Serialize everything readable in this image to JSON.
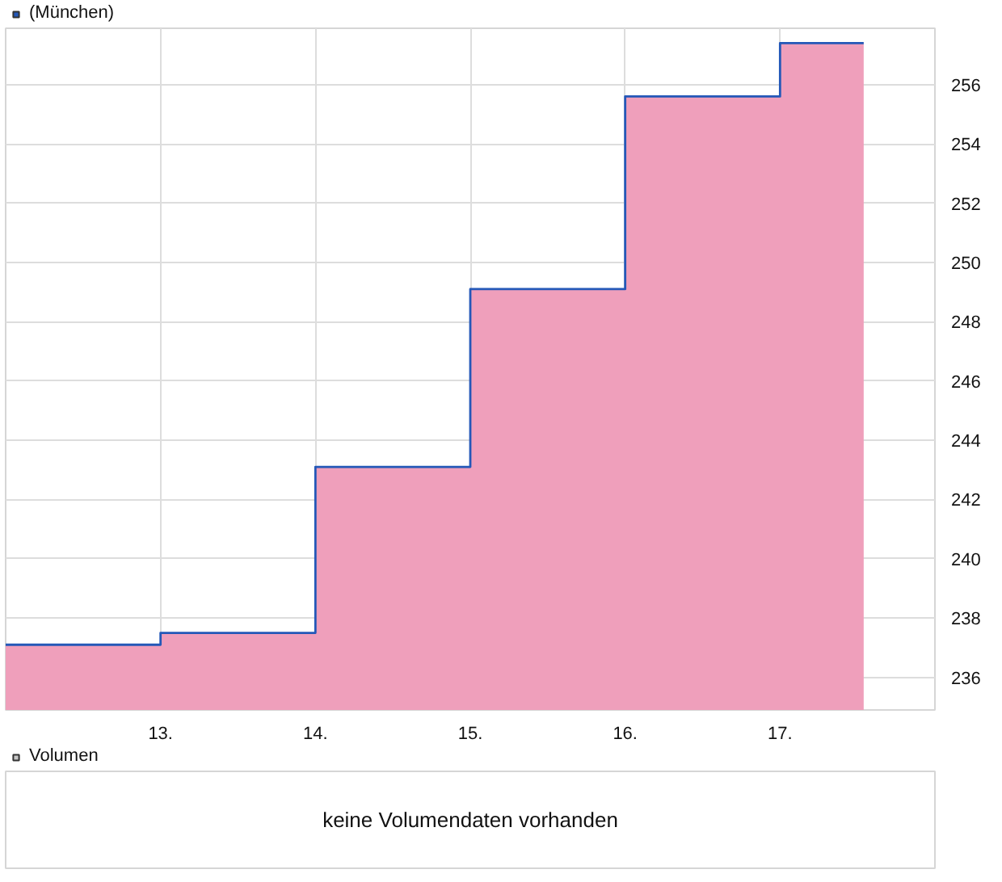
{
  "chart_data": [
    {
      "type": "area",
      "x": [
        12,
        13,
        13,
        14,
        14,
        15,
        15,
        16,
        16,
        17,
        17,
        17.54
      ],
      "series": [
        {
          "type": "area",
          "color": "#ef9fbb",
          "values": [
            237.1,
            237.1,
            237.5,
            237.5,
            243.1,
            243.1,
            249.1,
            249.1,
            255.6,
            255.6,
            257.4,
            257.4
          ]
        },
        {
          "type": "line",
          "name": "(München)",
          "color": "#2458b8",
          "values": [
            237.1,
            237.1,
            237.5,
            237.5,
            243.1,
            243.1,
            249.1,
            249.1,
            255.6,
            255.6,
            257.4,
            257.4
          ]
        }
      ],
      "xlim": [
        12,
        18
      ],
      "ylim": [
        234.9,
        257.9
      ],
      "xticks": [
        {
          "value": 13,
          "label": "13."
        },
        {
          "value": 14,
          "label": "14."
        },
        {
          "value": 15,
          "label": "15."
        },
        {
          "value": 16,
          "label": "16."
        },
        {
          "value": 17,
          "label": "17."
        }
      ],
      "yticks": [
        236,
        238,
        240,
        242,
        244,
        246,
        248,
        250,
        252,
        254,
        256
      ],
      "grid": true,
      "legend": "top left"
    },
    {
      "type": "other",
      "series": [
        {
          "name": "Volumen",
          "color": "#c8c8c8"
        }
      ],
      "legend": "top left",
      "annotations": [
        "keine Volumendaten vorhanden"
      ]
    }
  ]
}
